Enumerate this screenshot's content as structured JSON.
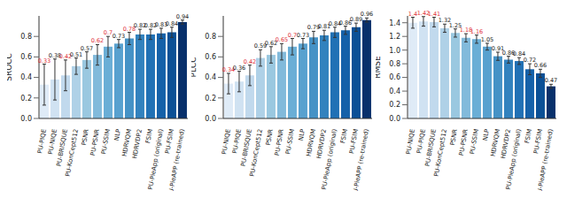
{
  "chart_data": [
    {
      "type": "bar",
      "y_label": "SROCC",
      "categories": [
        "PU-PIQE",
        "PU-NIQE",
        "PU-BRISQUE",
        "PU-KonCept512",
        "PSNR",
        "PU-PSNR",
        "PU-SSIM",
        "NLP",
        "HDRVQM",
        "HDRVDP2",
        "FSIM",
        "PU-PieApp (original)",
        "PU-FSIM",
        "PU-PieAPP (re-trained)"
      ],
      "values": [
        0.33,
        0.38,
        0.42,
        0.51,
        0.57,
        0.62,
        0.7,
        0.73,
        0.78,
        0.82,
        0.82,
        0.83,
        0.84,
        0.94
      ],
      "errors": [
        0.2,
        0.2,
        0.15,
        0.08,
        0.08,
        0.1,
        0.1,
        0.04,
        0.06,
        0.05,
        0.05,
        0.05,
        0.05,
        0.02
      ],
      "colors": [
        "#dfebf7",
        "#d0e2f2",
        "#c1d9ed",
        "#afd1e7",
        "#9ac8e0",
        "#82badb",
        "#6aaed6",
        "#58a1cf",
        "#4592c6",
        "#3282be",
        "#2171b5",
        "#1561a9",
        "#0b5096",
        "#08306b"
      ],
      "ylim": [
        0,
        1.0
      ],
      "yticks": [
        {
          "value": 0,
          "label": "0.0"
        },
        {
          "value": 0.2,
          "label": "0.2"
        },
        {
          "value": 0.4,
          "label": "0.4"
        },
        {
          "value": 0.6,
          "label": "0.6"
        },
        {
          "value": 0.8,
          "label": "0.8"
        }
      ],
      "data_labels": true,
      "grid": false
    },
    {
      "type": "bar",
      "y_label": "PLCC",
      "categories": [
        "PU-NIQE",
        "PU-PIQE",
        "PU-BRISQUE",
        "PU-KonCept512",
        "PSNR",
        "PU-PSNR",
        "PU-SSIM",
        "NLP",
        "HDRVQM",
        "HDRVDP2",
        "PU-PieApp (original)",
        "FSIM",
        "PU-FSIM",
        "PU-PieAPP (re-trained)"
      ],
      "values": [
        0.34,
        0.36,
        0.42,
        0.59,
        0.62,
        0.65,
        0.7,
        0.73,
        0.79,
        0.81,
        0.84,
        0.86,
        0.89,
        0.96
      ],
      "errors": [
        0.1,
        0.1,
        0.1,
        0.08,
        0.08,
        0.08,
        0.08,
        0.05,
        0.06,
        0.05,
        0.05,
        0.04,
        0.04,
        0.02
      ],
      "colors": [
        "#dfebf7",
        "#d0e2f2",
        "#c1d9ed",
        "#afd1e7",
        "#9ac8e0",
        "#82badb",
        "#6aaed6",
        "#58a1cf",
        "#4592c6",
        "#3282be",
        "#2171b5",
        "#1561a9",
        "#0b5096",
        "#08306b"
      ],
      "ylim": [
        0,
        1.0
      ],
      "yticks": [
        {
          "value": 0,
          "label": "0.0"
        },
        {
          "value": 0.2,
          "label": "0.2"
        },
        {
          "value": 0.4,
          "label": "0.4"
        },
        {
          "value": 0.6,
          "label": "0.6"
        },
        {
          "value": 0.8,
          "label": "0.8"
        }
      ],
      "data_labels": true,
      "grid": false
    },
    {
      "type": "bar",
      "y_label": "RMSE",
      "categories": [
        "PU-NIQE",
        "PU-PIQE",
        "PU-BRISQUE",
        "PU-KonCept512",
        "PSNR",
        "PU-PSNR",
        "PU-SSIM",
        "NLP",
        "HDRVQM",
        "HDRVDP2",
        "PU-PieApp (original)",
        "FSIM",
        "PU-FSIM",
        "PU-PieAPP (re-trained)"
      ],
      "values": [
        1.4,
        1.42,
        1.41,
        1.32,
        1.25,
        1.18,
        1.16,
        1.05,
        0.91,
        0.86,
        0.84,
        0.72,
        0.66,
        0.47
      ],
      "errors": [
        0.08,
        0.07,
        0.07,
        0.06,
        0.06,
        0.06,
        0.06,
        0.05,
        0.06,
        0.05,
        0.05,
        0.08,
        0.06,
        0.03
      ],
      "colors": [
        "#dfebf7",
        "#d0e2f2",
        "#c1d9ed",
        "#afd1e7",
        "#9ac8e0",
        "#82badb",
        "#6aaed6",
        "#58a1cf",
        "#4592c6",
        "#3282be",
        "#2171b5",
        "#1561a9",
        "#0b5096",
        "#08306b"
      ],
      "ylim": [
        0,
        1.5
      ],
      "yticks": [
        {
          "value": 0,
          "label": "0.0"
        },
        {
          "value": 0.2,
          "label": "0.2"
        },
        {
          "value": 0.4,
          "label": "0.4"
        },
        {
          "value": 0.6,
          "label": "0.6"
        },
        {
          "value": 0.8,
          "label": "0.8"
        },
        {
          "value": 1.0,
          "label": "1.0"
        },
        {
          "value": 1.2,
          "label": "1.2"
        },
        {
          "value": 1.4,
          "label": "1.4"
        }
      ],
      "data_labels": true,
      "grid": false
    }
  ]
}
